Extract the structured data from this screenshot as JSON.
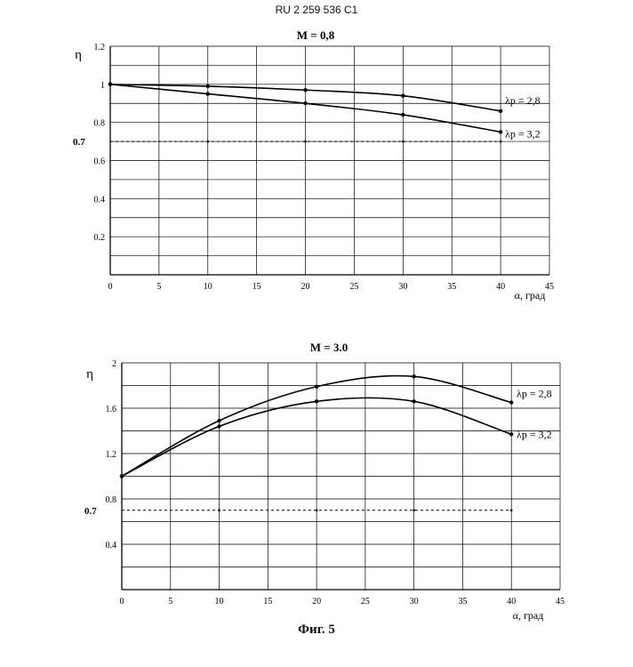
{
  "header": "RU 2 259 536 C1",
  "figure_caption": "Фиг. 5",
  "chart_data": [
    {
      "type": "line",
      "title": "M = 0,8",
      "ylabel": "η",
      "xlabel": "α, град",
      "xlim": [
        0,
        45
      ],
      "ylim": [
        0,
        1.2
      ],
      "x_ticks": [
        0,
        5,
        10,
        15,
        20,
        25,
        30,
        35,
        40,
        45
      ],
      "x_tick_labels": [
        "0",
        "5",
        "10",
        "15",
        "20",
        "25",
        "30",
        "35",
        "40",
        "45"
      ],
      "y_ticks": [
        0.2,
        0.4,
        0.6,
        0.8,
        1,
        1.2
      ],
      "y_tick_labels": [
        "0.2",
        "0.4",
        "0.6",
        "0.8",
        "1",
        "1.2"
      ],
      "grid": true,
      "reference_line": {
        "y": 0.7,
        "label": "0.7",
        "style": "dashed"
      },
      "series": [
        {
          "name": "λp = 2,8",
          "x": [
            0,
            10,
            20,
            30,
            40
          ],
          "y": [
            1.0,
            0.99,
            0.97,
            0.94,
            0.86
          ]
        },
        {
          "name": "λp = 3,2",
          "x": [
            0,
            10,
            20,
            30,
            40
          ],
          "y": [
            1.0,
            0.95,
            0.9,
            0.84,
            0.75
          ]
        }
      ]
    },
    {
      "type": "line",
      "title": "M = 3.0",
      "ylabel": "η",
      "xlabel": "α, град",
      "xlim": [
        0,
        45
      ],
      "ylim": [
        0,
        2
      ],
      "x_ticks": [
        0,
        5,
        10,
        15,
        20,
        25,
        30,
        35,
        40,
        45
      ],
      "x_tick_labels": [
        "0",
        "5",
        "10",
        "15",
        "20",
        "25",
        "30",
        "35",
        "40",
        "45"
      ],
      "y_ticks": [
        0.4,
        0.8,
        1.2,
        1.6,
        2
      ],
      "y_tick_labels": [
        "0.4",
        "0.8",
        "1.2",
        "1.6",
        "2"
      ],
      "grid": true,
      "reference_line": {
        "y": 0.7,
        "label": "0.7",
        "style": "dashed"
      },
      "series": [
        {
          "name": "λp = 2,8",
          "x": [
            0,
            10,
            20,
            30,
            40
          ],
          "y": [
            1.0,
            1.49,
            1.79,
            1.88,
            1.65
          ]
        },
        {
          "name": "λp = 3,2",
          "x": [
            0,
            10,
            20,
            30,
            40
          ],
          "y": [
            1.0,
            1.44,
            1.66,
            1.66,
            1.37
          ]
        }
      ]
    }
  ]
}
